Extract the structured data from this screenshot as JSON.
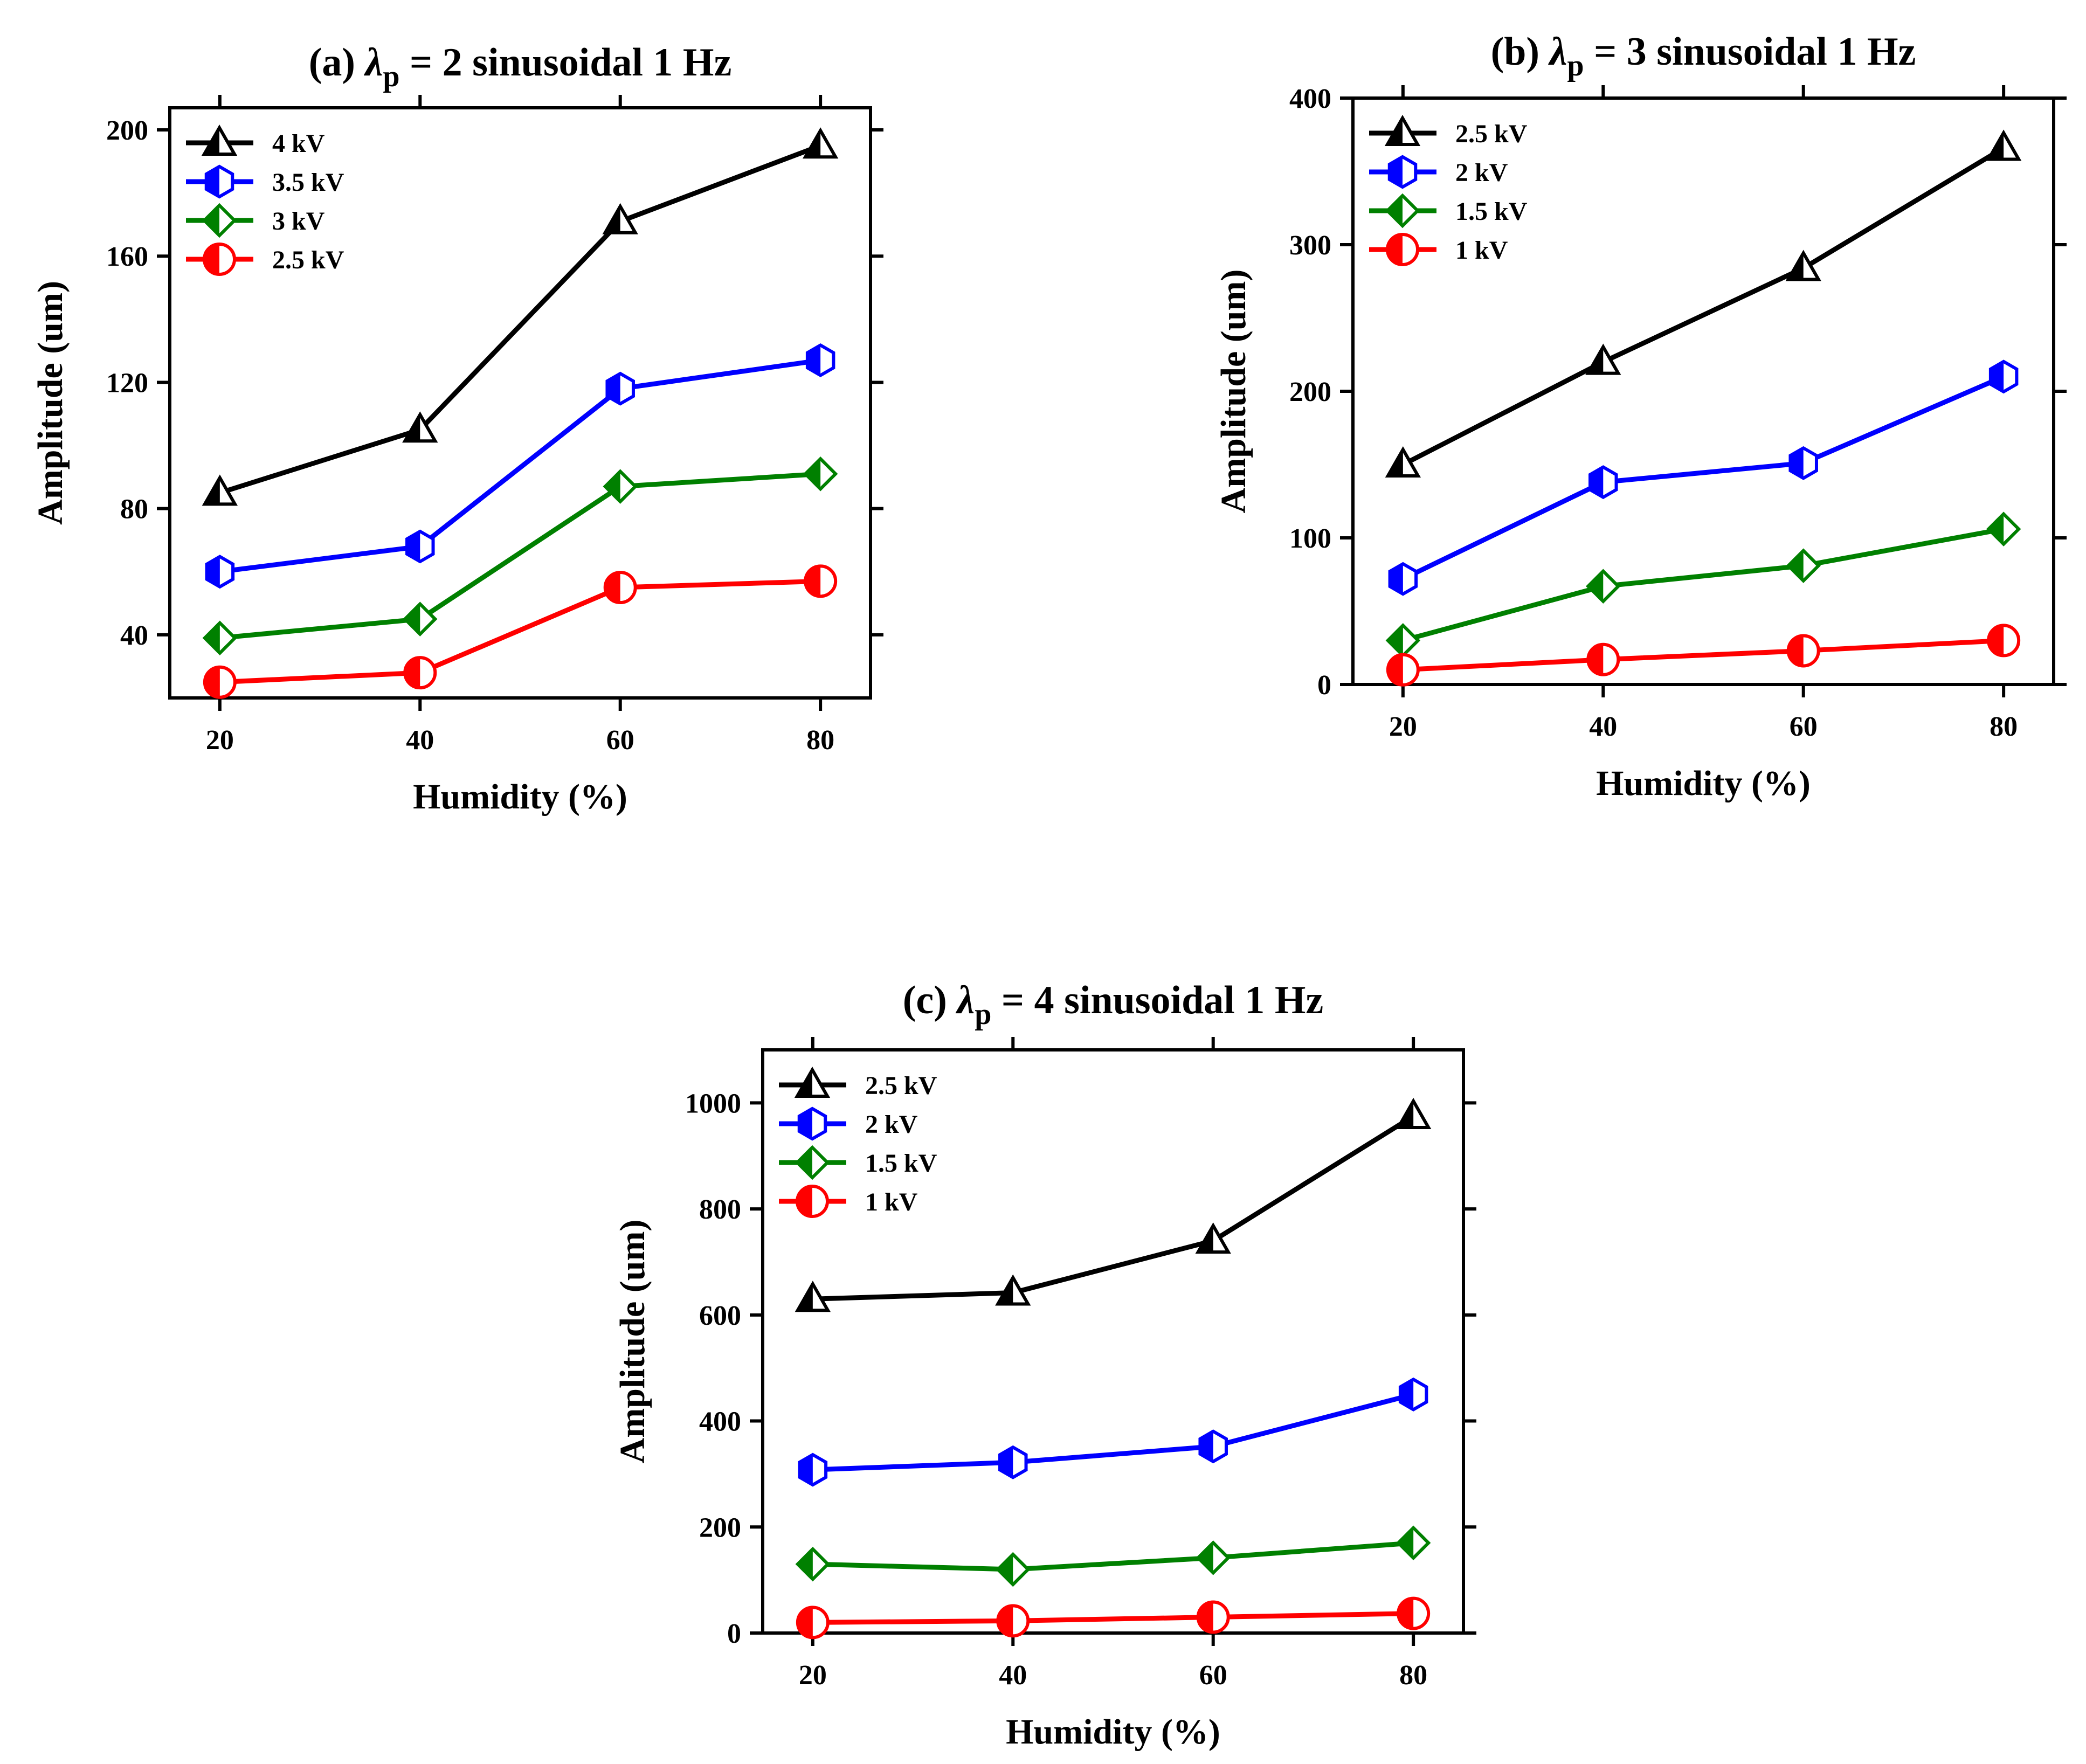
{
  "chart_data": [
    {
      "type": "line",
      "title_prefix": "(a) ",
      "title_symbol": "λ",
      "title_sub": "p",
      "title_suffix": " = 2  sinusoidal  1 Hz",
      "xlabel": "Humidity (%)",
      "ylabel": "Amplitude (um)",
      "x": [
        20,
        40,
        60,
        80
      ],
      "xticks": [
        20,
        40,
        60,
        80
      ],
      "yticks": [
        40,
        80,
        120,
        160,
        200
      ],
      "xlim": [
        15,
        85
      ],
      "ylim": [
        20,
        207
      ],
      "legend_position": "top-left",
      "series": [
        {
          "name": "4 kV",
          "color": "#000000",
          "marker": "triangle",
          "values": [
            85,
            105,
            171,
            195
          ]
        },
        {
          "name": "3.5 kV",
          "color": "#0000ff",
          "marker": "hexagon",
          "values": [
            60,
            68,
            118,
            127
          ]
        },
        {
          "name": "3 kV",
          "color": "#008000",
          "marker": "diamond",
          "values": [
            39,
            45,
            87,
            91
          ]
        },
        {
          "name": "2.5 kV",
          "color": "#ff0000",
          "marker": "circle",
          "values": [
            25,
            28,
            55,
            57
          ]
        }
      ]
    },
    {
      "type": "line",
      "title_prefix": "(b) ",
      "title_symbol": "λ",
      "title_sub": "p",
      "title_suffix": " = 3  sinusoidal  1 Hz",
      "xlabel": "Humidity (%)",
      "ylabel": "Amplitude (um)",
      "x": [
        20,
        40,
        60,
        80
      ],
      "xticks": [
        20,
        40,
        60,
        80
      ],
      "yticks": [
        0,
        100,
        200,
        300,
        400
      ],
      "xlim": [
        15,
        85
      ],
      "ylim": [
        0,
        400
      ],
      "legend_position": "top-left",
      "series": [
        {
          "name": "2.5 kV",
          "color": "#000000",
          "marker": "triangle",
          "values": [
            150,
            220,
            284,
            366
          ]
        },
        {
          "name": "2 kV",
          "color": "#0000ff",
          "marker": "hexagon",
          "values": [
            72,
            138,
            151,
            210
          ]
        },
        {
          "name": "1.5 kV",
          "color": "#008000",
          "marker": "diamond",
          "values": [
            30,
            67,
            81,
            106
          ]
        },
        {
          "name": "1 kV",
          "color": "#ff0000",
          "marker": "circle",
          "values": [
            10,
            17,
            23,
            30
          ]
        }
      ]
    },
    {
      "type": "line",
      "title_prefix": "(c) ",
      "title_symbol": "λ",
      "title_sub": "p",
      "title_suffix": " = 4  sinusoidal  1 Hz",
      "xlabel": "Humidity (%)",
      "ylabel": "Amplitude (um)",
      "x": [
        20,
        40,
        60,
        80
      ],
      "xticks": [
        20,
        40,
        60,
        80
      ],
      "yticks": [
        0,
        200,
        400,
        600,
        800,
        1000
      ],
      "xlim": [
        15,
        85
      ],
      "ylim": [
        0,
        1100
      ],
      "legend_position": "top-left",
      "series": [
        {
          "name": "2.5 kV",
          "color": "#000000",
          "marker": "triangle",
          "values": [
            630,
            642,
            740,
            975
          ]
        },
        {
          "name": "2 kV",
          "color": "#0000ff",
          "marker": "hexagon",
          "values": [
            308,
            322,
            352,
            450
          ]
        },
        {
          "name": "1.5 kV",
          "color": "#008000",
          "marker": "diamond",
          "values": [
            130,
            120,
            142,
            170
          ]
        },
        {
          "name": "1 kV",
          "color": "#ff0000",
          "marker": "circle",
          "values": [
            20,
            23,
            30,
            37
          ]
        }
      ]
    }
  ]
}
